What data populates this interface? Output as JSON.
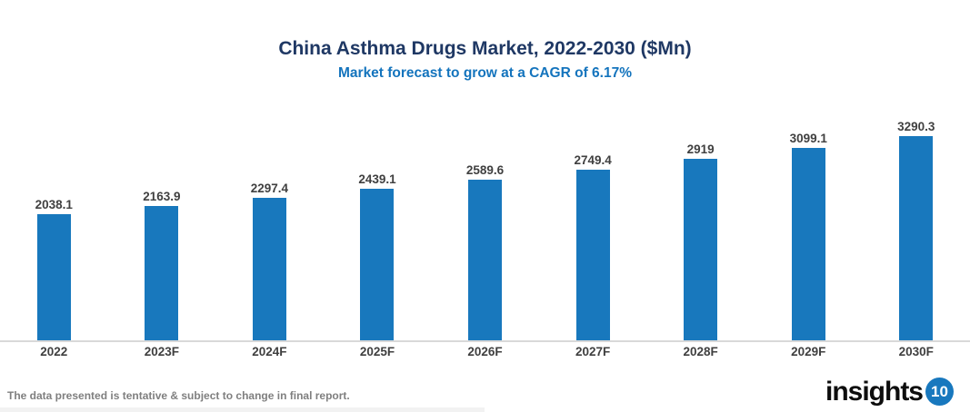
{
  "header": {
    "title": "China Asthma Drugs Market, 2022-2030 ($Mn)",
    "subtitle": "Market forecast to grow at a CAGR of 6.17%"
  },
  "chart_data": {
    "type": "bar",
    "categories": [
      "2022",
      "2023F",
      "2024F",
      "2025F",
      "2026F",
      "2027F",
      "2028F",
      "2029F",
      "2030F"
    ],
    "values": [
      2038.1,
      2163.9,
      2297.4,
      2439.1,
      2589.6,
      2749.4,
      2919,
      3099.1,
      3290.3
    ],
    "data_labels": [
      "2038.1",
      "2163.9",
      "2297.4",
      "2439.1",
      "2589.6",
      "2749.4",
      "2919",
      "3099.1",
      "3290.3"
    ],
    "title": "China Asthma Drugs Market, 2022-2030 ($Mn)",
    "subtitle": "Market forecast to grow at a CAGR of 6.17%",
    "xlabel": "",
    "ylabel": "",
    "ylim": [
      0,
      4000
    ],
    "grid": false,
    "legend": false,
    "data_labels_shown": true
  },
  "colors": {
    "title": "#1f3864",
    "subtitle": "#1474bd",
    "bar": "#1878bd",
    "value_label": "#404040",
    "x_label": "#3f3f3f",
    "axis_line": "#d9d9d9",
    "footer": "#7f7f7f",
    "logo_text": "#0d0d0d",
    "logo_badge": "#1878be"
  },
  "footer": {
    "note": "The data presented is tentative & subject to change in final report."
  },
  "logo": {
    "text": "insights",
    "badge": "10"
  }
}
